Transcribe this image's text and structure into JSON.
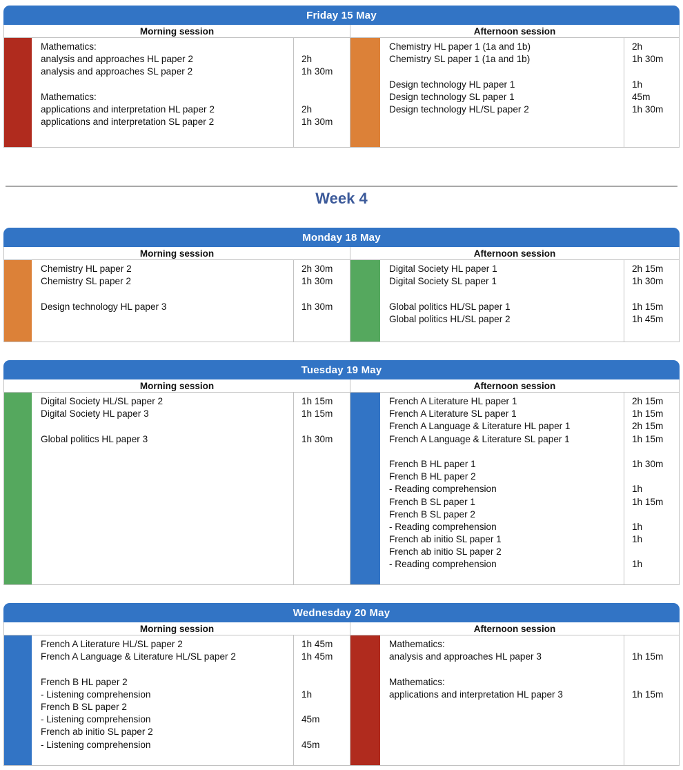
{
  "week_title": "Week 4",
  "session_labels": {
    "morning": "Morning session",
    "afternoon": "Afternoon session"
  },
  "colors": {
    "day_header": "#3274C5",
    "week_title": "#3C5A9A",
    "mathematics_red": "#B02B1E",
    "sciences_orange": "#DC8138",
    "societies_green": "#55A85E",
    "languages_blue": "#3274C5"
  },
  "days": [
    {
      "title": "Friday 15 May",
      "morning": {
        "color": "#B02B1E",
        "rows": [
          {
            "name": "Mathematics:",
            "duration": ""
          },
          {
            "name": "analysis and approaches HL paper 2",
            "duration": "2h"
          },
          {
            "name": "analysis and approaches SL paper 2",
            "duration": "1h 30m"
          },
          {
            "name": "",
            "duration": ""
          },
          {
            "name": "Mathematics:",
            "duration": ""
          },
          {
            "name": "applications and interpretation HL paper 2",
            "duration": "2h"
          },
          {
            "name": "applications and interpretation SL paper 2",
            "duration": "1h 30m"
          }
        ]
      },
      "afternoon": {
        "color": "#DC8138",
        "rows": [
          {
            "name": "Chemistry HL paper 1 (1a and 1b)",
            "duration": "2h"
          },
          {
            "name": "Chemistry SL paper 1 (1a and 1b)",
            "duration": "1h 30m"
          },
          {
            "name": "",
            "duration": ""
          },
          {
            "name": "Design technology HL paper 1",
            "duration": "1h"
          },
          {
            "name": "Design technology SL paper 1",
            "duration": "45m"
          },
          {
            "name": "Design technology HL/SL paper 2",
            "duration": "1h 30m"
          }
        ]
      }
    },
    {
      "title": "Monday 18 May",
      "morning": {
        "color": "#DC8138",
        "rows": [
          {
            "name": "Chemistry HL paper 2",
            "duration": "2h 30m"
          },
          {
            "name": "Chemistry SL paper 2",
            "duration": "1h 30m"
          },
          {
            "name": "",
            "duration": ""
          },
          {
            "name": "Design technology HL paper 3",
            "duration": "1h 30m"
          }
        ]
      },
      "afternoon": {
        "color": "#55A85E",
        "rows": [
          {
            "name": "Digital Society HL paper 1",
            "duration": "2h 15m"
          },
          {
            "name": "Digital Society SL paper 1",
            "duration": "1h 30m"
          },
          {
            "name": "",
            "duration": ""
          },
          {
            "name": "Global politics HL/SL paper 1",
            "duration": "1h 15m"
          },
          {
            "name": "Global politics HL/SL paper 2",
            "duration": "1h 45m"
          }
        ]
      }
    },
    {
      "title": "Tuesday 19 May",
      "morning": {
        "color": "#55A85E",
        "rows": [
          {
            "name": "Digital Society HL/SL paper 2",
            "duration": "1h 15m"
          },
          {
            "name": "Digital Society HL paper 3",
            "duration": "1h 15m"
          },
          {
            "name": "",
            "duration": ""
          },
          {
            "name": "Global politics HL paper 3",
            "duration": "1h 30m"
          }
        ]
      },
      "afternoon": {
        "color": "#3274C5",
        "rows": [
          {
            "name": "French A Literature HL paper 1",
            "duration": "2h 15m"
          },
          {
            "name": "French A Literature SL paper 1",
            "duration": "1h 15m"
          },
          {
            "name": "French A Language & Literature HL paper 1",
            "duration": "2h 15m"
          },
          {
            "name": "French A Language & Literature SL paper 1",
            "duration": "1h 15m"
          },
          {
            "name": "",
            "duration": ""
          },
          {
            "name": "French B HL paper 1",
            "duration": "1h 30m"
          },
          {
            "name": "French B HL paper 2",
            "duration": ""
          },
          {
            "name": "- Reading comprehension",
            "duration": "1h"
          },
          {
            "name": "French B SL paper 1",
            "duration": "1h 15m"
          },
          {
            "name": "French B SL paper 2",
            "duration": ""
          },
          {
            "name": "- Reading comprehension",
            "duration": "1h"
          },
          {
            "name": "French ab initio SL paper 1",
            "duration": "1h"
          },
          {
            "name": "French ab initio SL paper 2",
            "duration": ""
          },
          {
            "name": "- Reading comprehension",
            "duration": "1h"
          }
        ]
      }
    },
    {
      "title": "Wednesday 20 May",
      "morning": {
        "color": "#3274C5",
        "rows": [
          {
            "name": "French A Literature HL/SL paper 2",
            "duration": "1h 45m"
          },
          {
            "name": "French A Language & Literature HL/SL paper 2",
            "duration": "1h 45m"
          },
          {
            "name": "",
            "duration": ""
          },
          {
            "name": "French B HL paper 2",
            "duration": ""
          },
          {
            "name": "- Listening comprehension",
            "duration": "1h"
          },
          {
            "name": "French B SL paper 2",
            "duration": ""
          },
          {
            "name": "- Listening comprehension",
            "duration": "45m"
          },
          {
            "name": "French ab initio SL paper 2",
            "duration": ""
          },
          {
            "name": "- Listening comprehension",
            "duration": "45m"
          }
        ]
      },
      "afternoon": {
        "color": "#B02B1E",
        "rows": [
          {
            "name": "Mathematics:",
            "duration": ""
          },
          {
            "name": "analysis and approaches HL paper 3",
            "duration": "1h 15m"
          },
          {
            "name": "",
            "duration": ""
          },
          {
            "name": "Mathematics:",
            "duration": ""
          },
          {
            "name": "applications and interpretation HL paper 3",
            "duration": "1h 15m"
          }
        ]
      }
    }
  ]
}
